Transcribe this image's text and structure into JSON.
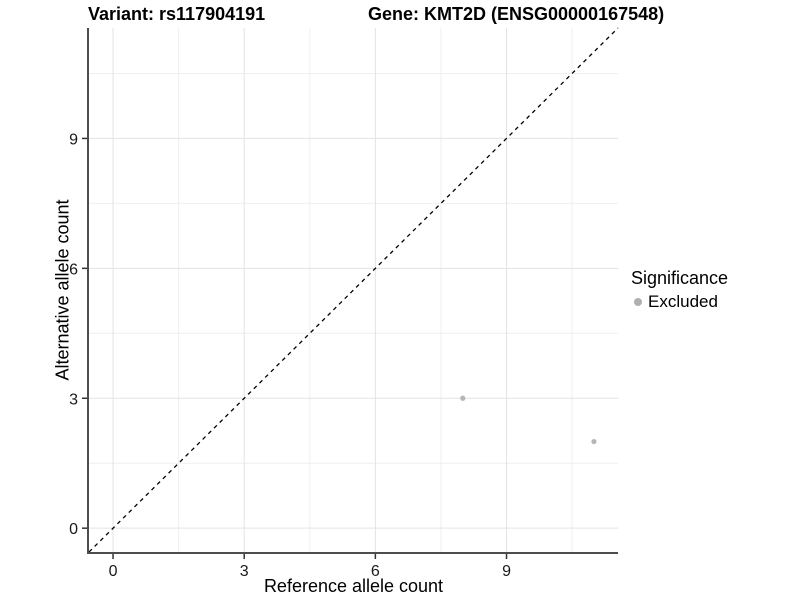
{
  "chart_data": {
    "type": "scatter",
    "title_left": "Variant: rs117904191",
    "title_right": "Gene: KMT2D (ENSG00000167548)",
    "xlabel": "Reference allele count",
    "ylabel": "Alternative allele count",
    "xlim": [
      -0.55,
      11.55
    ],
    "ylim": [
      -0.55,
      11.55
    ],
    "x_major_ticks": [
      0,
      3,
      6,
      9
    ],
    "y_major_ticks": [
      0,
      3,
      6,
      9
    ],
    "x_minor_ticks": [
      1.5,
      4.5,
      7.5,
      10.5
    ],
    "y_minor_ticks": [
      1.5,
      4.5,
      7.5,
      10.5
    ],
    "grid": true,
    "series": [
      {
        "name": "Excluded",
        "color": "#b5b5b5",
        "points": [
          {
            "x": 8,
            "y": 3
          },
          {
            "x": 11,
            "y": 2
          }
        ]
      }
    ],
    "identity_line": {
      "slope": 1,
      "intercept": 0,
      "style": "dashed",
      "color": "#000000"
    },
    "legend": {
      "title": "Significance",
      "position": "right",
      "items": [
        {
          "label": "Excluded",
          "color": "#b0b0b0"
        }
      ]
    },
    "colors": {
      "grid_major": "#e3e3e3",
      "grid_minor": "#efefef",
      "axis_line": "#4d4d4d",
      "tick_mark": "#333333",
      "tick_label": "#1a1a1a",
      "background": "#ffffff"
    }
  }
}
